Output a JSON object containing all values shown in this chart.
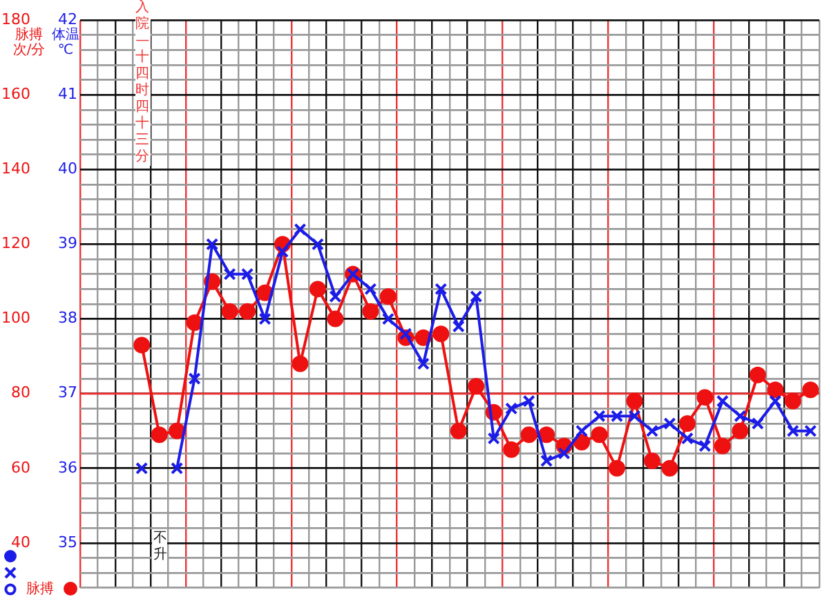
{
  "chart_data": {
    "type": "line",
    "ylabel": "体温 ℃",
    "y2label": "脉搏次/分",
    "annotations": [
      "入院—十四时四十三分",
      "不升"
    ],
    "categories": [
      null,
      null,
      null,
      null,
      null,
      null,
      null,
      null,
      null,
      null,
      null,
      null,
      null,
      null,
      null,
      null,
      null,
      null,
      null,
      null,
      null,
      null,
      null,
      null,
      null,
      null,
      null,
      null,
      null,
      null,
      null,
      null,
      null,
      null,
      null,
      null,
      null,
      null,
      null,
      null,
      null,
      null
    ],
    "series": [
      {
        "color": "#1c1ce8",
        "marker": "cross",
        "values": [
          null,
          null,
          null,
          36.0,
          null,
          36.0,
          37.2,
          39.0,
          38.6,
          38.6,
          38.0,
          38.9,
          39.2,
          39.0,
          38.3,
          38.6,
          38.4,
          38.0,
          37.8,
          37.4,
          38.4,
          37.9,
          38.3,
          36.4,
          36.8,
          36.9,
          36.1,
          36.2,
          36.5,
          36.7,
          36.7,
          36.7,
          36.5,
          36.6,
          36.4,
          36.3,
          36.9,
          36.7,
          36.6,
          36.9,
          36.5,
          36.5
        ]
      },
      {
        "name": "脉搏",
        "color": "#ee1111",
        "marker": "circle",
        "axis": "y2",
        "values": [
          null,
          null,
          null,
          93,
          69,
          70,
          99,
          110,
          102,
          102,
          107,
          120,
          88,
          108,
          100,
          112,
          102,
          106,
          95,
          95,
          96,
          70,
          82,
          75,
          65,
          69,
          69,
          66,
          67,
          69,
          60,
          78,
          62,
          60,
          72,
          79,
          66,
          70,
          85,
          81,
          78,
          81
        ]
      }
    ],
    "ylim": [
      34.4,
      42
    ],
    "yticks": [
      {
        "value": 34.4,
        "label": null
      },
      {
        "value": 34.6,
        "label": null
      },
      {
        "value": 34.8,
        "label": null
      },
      35,
      {
        "value": 35.2,
        "label": null
      },
      {
        "value": 35.4,
        "label": null
      },
      {
        "value": 35.6,
        "label": null
      },
      {
        "value": 35.8,
        "label": null
      },
      36,
      {
        "value": 36.2,
        "label": null
      },
      {
        "value": 36.4,
        "label": null
      },
      {
        "value": 36.6,
        "label": null
      },
      {
        "value": 36.8,
        "label": null
      },
      37,
      {
        "value": 37.2,
        "label": null
      },
      {
        "value": 37.4,
        "label": null
      },
      {
        "value": 37.6,
        "label": null
      },
      {
        "value": 37.8,
        "label": null
      },
      38,
      {
        "value": 38.2,
        "label": null
      },
      {
        "value": 38.4,
        "label": null
      },
      {
        "value": 38.6,
        "label": null
      },
      {
        "value": 38.8,
        "label": null
      },
      39,
      {
        "value": 39.2,
        "label": null
      },
      {
        "value": 39.4,
        "label": null
      },
      {
        "value": 39.6,
        "label": null
      },
      {
        "value": 39.8,
        "label": null
      },
      40,
      {
        "value": 40.2,
        "label": null
      },
      {
        "value": 40.4,
        "label": null
      },
      {
        "value": 40.6,
        "label": null
      },
      {
        "value": 40.8,
        "label": null
      },
      41,
      {
        "value": 41.2,
        "label": null
      },
      {
        "value": 41.4,
        "label": null
      },
      {
        "value": 41.6,
        "label": null
      },
      {
        "value": 41.8,
        "label": null
      },
      42
    ],
    "y2lim": [
      28,
      180
    ],
    "y2ticks": [
      40,
      60,
      80,
      100,
      120,
      140,
      160,
      180
    ],
    "ref_lines": [
      {
        "axis": "y",
        "value": 37,
        "color": "#ee3333"
      }
    ],
    "grid": true,
    "legend": "bottom left",
    "tick_labels": "y"
  }
}
